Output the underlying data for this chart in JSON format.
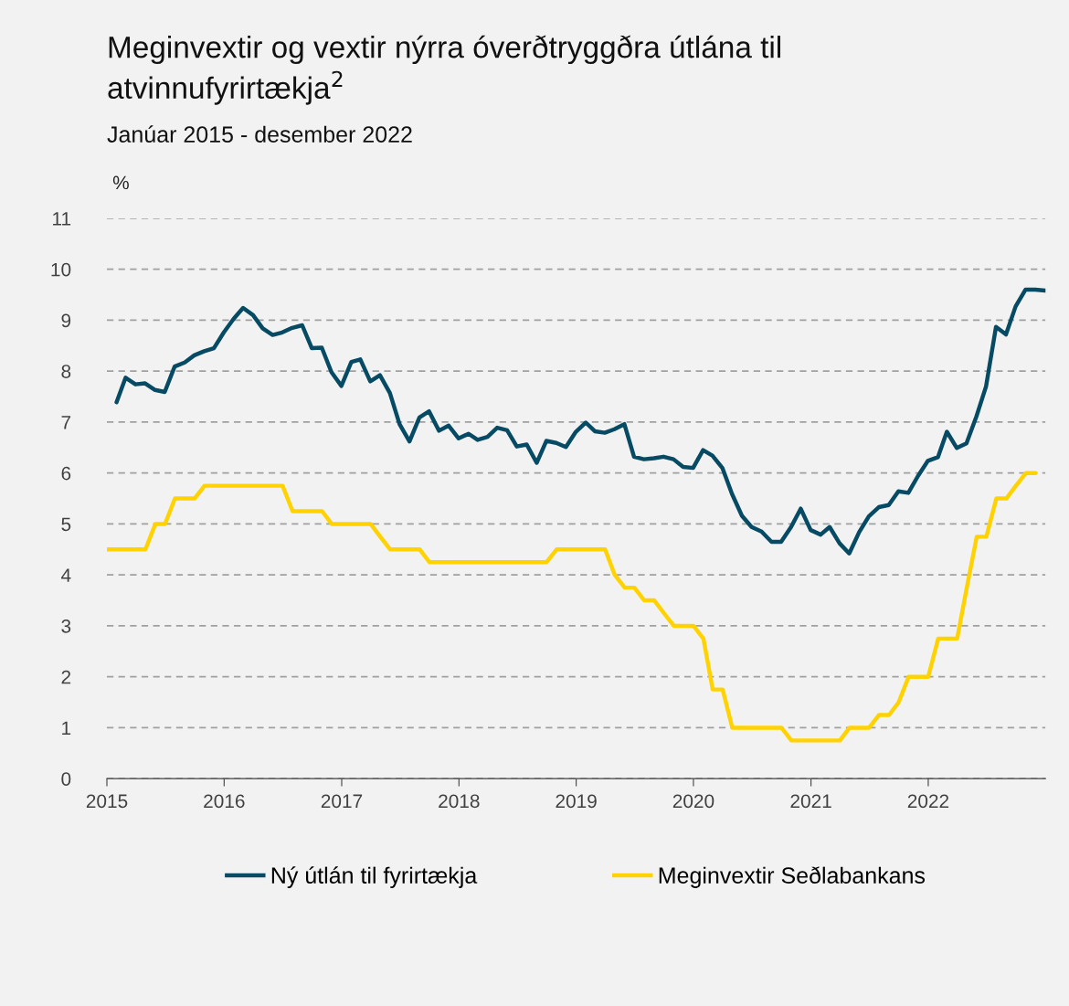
{
  "chart_data": {
    "type": "line",
    "title": "Meginvextir og vextir nýrra óverðtryggðra útlána til\natvinnufyrirtækja$^{2}$",
    "subtitle": "Janúar 2015 - desember 2022",
    "ylabel": "%",
    "series": [
      {
        "name": "Ný útlán til fyrirtækja",
        "color": "#064a63",
        "x": [
          "2015-01-31",
          "2015-02-28",
          "2015-03-31",
          "2015-04-30",
          "2015-05-31",
          "2015-06-30",
          "2015-07-31",
          "2015-08-31",
          "2015-09-30",
          "2015-10-31",
          "2015-11-30",
          "2015-12-31",
          "2016-01-31",
          "2016-02-29",
          "2016-03-31",
          "2016-04-30",
          "2016-05-31",
          "2016-06-30",
          "2016-07-31",
          "2016-08-31",
          "2016-09-30",
          "2016-10-31",
          "2016-11-30",
          "2016-12-31",
          "2017-01-31",
          "2017-02-28",
          "2017-03-31",
          "2017-04-30",
          "2017-05-31",
          "2017-06-30",
          "2017-07-31",
          "2017-08-31",
          "2017-09-30",
          "2017-10-31",
          "2017-11-30",
          "2017-12-31",
          "2018-01-31",
          "2018-02-28",
          "2018-03-31",
          "2018-04-30",
          "2018-05-31",
          "2018-06-30",
          "2018-07-31",
          "2018-08-31",
          "2018-09-30",
          "2018-10-31",
          "2018-11-30",
          "2018-12-31",
          "2019-01-31",
          "2019-02-28",
          "2019-03-31",
          "2019-04-30",
          "2019-05-31",
          "2019-06-30",
          "2019-07-31",
          "2019-08-31",
          "2019-09-30",
          "2019-10-31",
          "2019-11-30",
          "2019-12-31",
          "2020-01-31",
          "2020-02-29",
          "2020-03-31",
          "2020-04-30",
          "2020-05-31",
          "2020-06-30",
          "2020-07-31",
          "2020-08-31",
          "2020-09-30",
          "2020-10-31",
          "2020-11-30",
          "2020-12-31",
          "2021-01-31",
          "2021-02-28",
          "2021-03-31",
          "2021-04-30",
          "2021-05-31",
          "2021-06-30",
          "2021-07-31",
          "2021-08-31",
          "2021-09-30",
          "2021-10-31",
          "2021-11-30",
          "2021-12-31",
          "2022-01-31",
          "2022-02-28",
          "2022-03-31",
          "2022-04-30",
          "2022-05-31",
          "2022-06-30",
          "2022-07-31",
          "2022-08-31",
          "2022-09-30",
          "2022-10-31",
          "2022-11-30",
          "2022-12-31"
        ],
        "values": [
          7.39,
          7.87,
          7.74,
          7.76,
          7.63,
          7.59,
          8.09,
          8.17,
          8.31,
          8.39,
          8.45,
          8.76,
          9.03,
          9.24,
          9.1,
          8.84,
          8.71,
          8.76,
          8.85,
          8.9,
          8.45,
          8.46,
          7.98,
          7.71,
          8.18,
          8.23,
          7.8,
          7.92,
          7.57,
          6.96,
          6.62,
          7.09,
          7.21,
          6.83,
          6.93,
          6.68,
          6.77,
          6.65,
          6.71,
          6.89,
          6.84,
          6.52,
          6.56,
          6.2,
          6.63,
          6.59,
          6.51,
          6.81,
          6.99,
          6.82,
          6.79,
          6.86,
          6.96,
          6.32,
          6.27,
          6.29,
          6.32,
          6.27,
          6.12,
          6.1,
          6.45,
          6.34,
          6.1,
          5.59,
          5.16,
          4.94,
          4.85,
          4.65,
          4.65,
          4.94,
          5.3,
          4.88,
          4.79,
          4.94,
          4.62,
          4.42,
          4.84,
          5.15,
          5.33,
          5.37,
          5.64,
          5.61,
          5.94,
          6.24,
          6.31,
          6.81,
          6.49,
          6.58,
          7.11,
          7.7,
          8.87,
          8.72,
          9.27,
          9.6,
          9.6,
          9.58
        ]
      },
      {
        "name": "Meginvextir Seðlabankans",
        "color": "#ffd200",
        "x": [
          "2015-01",
          "2015-02",
          "2015-03",
          "2015-04",
          "2015-05",
          "2015-06",
          "2015-07",
          "2015-08",
          "2015-09",
          "2015-10",
          "2015-11",
          "2015-12",
          "2016-01",
          "2016-02",
          "2016-03",
          "2016-04",
          "2016-05",
          "2016-06",
          "2016-07",
          "2016-08",
          "2016-09",
          "2016-10",
          "2016-11",
          "2016-12",
          "2017-01",
          "2017-02",
          "2017-03",
          "2017-04",
          "2017-05",
          "2017-06",
          "2017-07",
          "2017-08",
          "2017-09",
          "2017-10",
          "2017-11",
          "2017-12",
          "2018-01",
          "2018-02",
          "2018-03",
          "2018-04",
          "2018-05",
          "2018-06",
          "2018-07",
          "2018-08",
          "2018-09",
          "2018-10",
          "2018-11",
          "2018-12",
          "2019-01",
          "2019-02",
          "2019-03",
          "2019-04",
          "2019-05",
          "2019-06",
          "2019-07",
          "2019-08",
          "2019-09",
          "2019-10",
          "2019-11",
          "2019-12",
          "2020-01",
          "2020-02",
          "2020-03",
          "2020-04",
          "2020-05",
          "2020-06",
          "2020-07",
          "2020-08",
          "2020-09",
          "2020-10",
          "2020-11",
          "2020-12",
          "2021-01",
          "2021-02",
          "2021-03",
          "2021-04",
          "2021-05",
          "2021-06",
          "2021-07",
          "2021-08",
          "2021-09",
          "2021-10",
          "2021-11",
          "2021-12",
          "2022-01",
          "2022-02",
          "2022-03",
          "2022-04",
          "2022-05",
          "2022-06",
          "2022-07",
          "2022-08",
          "2022-09",
          "2022-10",
          "2022-11",
          "2022-12"
        ],
        "values": [
          4.5,
          4.5,
          4.5,
          4.5,
          4.5,
          5.0,
          5.0,
          5.5,
          5.5,
          5.5,
          5.75,
          5.75,
          5.75,
          5.75,
          5.75,
          5.75,
          5.75,
          5.75,
          5.75,
          5.25,
          5.25,
          5.25,
          5.25,
          5.0,
          5.0,
          5.0,
          5.0,
          5.0,
          4.75,
          4.5,
          4.5,
          4.5,
          4.5,
          4.25,
          4.25,
          4.25,
          4.25,
          4.25,
          4.25,
          4.25,
          4.25,
          4.25,
          4.25,
          4.25,
          4.25,
          4.25,
          4.5,
          4.5,
          4.5,
          4.5,
          4.5,
          4.5,
          4.0,
          3.75,
          3.75,
          3.5,
          3.5,
          3.25,
          3.0,
          3.0,
          3.0,
          2.75,
          1.75,
          1.75,
          1.0,
          1.0,
          1.0,
          1.0,
          1.0,
          1.0,
          0.75,
          0.75,
          0.75,
          0.75,
          0.75,
          0.75,
          1.0,
          1.0,
          1.0,
          1.25,
          1.25,
          1.5,
          2.0,
          2.0,
          2.0,
          2.75,
          2.75,
          2.75,
          3.75,
          4.75,
          4.75,
          5.5,
          5.5,
          5.75,
          6.0,
          6.0
        ]
      }
    ],
    "xlim": [
      "2015",
      "2023"
    ],
    "xticks": [
      {
        "value": "2015",
        "label": "2015"
      },
      {
        "value": "2016",
        "label": "2016"
      },
      {
        "value": "2017",
        "label": "2017"
      },
      {
        "value": "2018",
        "label": "2018"
      },
      {
        "value": "2019",
        "label": "2019"
      },
      {
        "value": "2020",
        "label": "2020"
      },
      {
        "value": "2021",
        "label": "2021"
      },
      {
        "value": "2022",
        "label": "2022"
      }
    ],
    "ylim": [
      0,
      11
    ],
    "yticks": [
      0,
      1,
      2,
      3,
      4,
      5,
      6,
      7,
      8,
      9,
      10,
      11
    ],
    "grid": "y",
    "legend": "bottom",
    "marker": "none",
    "line_style": "solid"
  }
}
